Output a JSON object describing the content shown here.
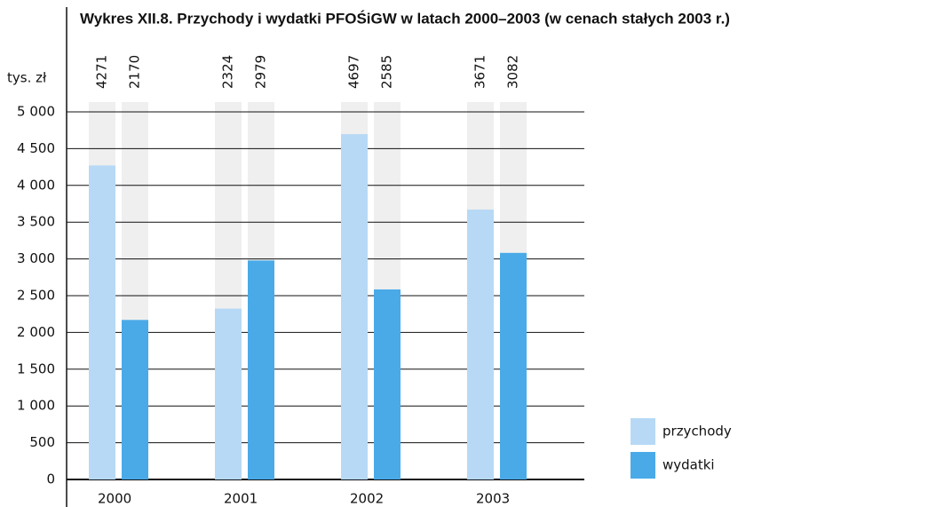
{
  "chart_data": {
    "type": "bar",
    "title": "Wykres XII.8. Przychody i wydatki PFOŚiGW w latach 2000–2003 (w cenach stałych 2003 r.)",
    "y_axis_label": "tys. zł",
    "categories": [
      "2000",
      "2001",
      "2002",
      "2003"
    ],
    "series": [
      {
        "name": "przychody",
        "color": "#b7d9f5",
        "values": [
          4271,
          2324,
          4697,
          3671
        ]
      },
      {
        "name": "wydatki",
        "color": "#4aaae8",
        "values": [
          2170,
          2979,
          2585,
          3082
        ]
      }
    ],
    "ylim": [
      0,
      5000
    ],
    "yticks": [
      0,
      500,
      {
        "value": 1000,
        "label": "1 000"
      },
      {
        "value": 1500,
        "label": "1 500"
      },
      {
        "value": 2000,
        "label": "2 000"
      },
      {
        "value": 2500,
        "label": "2 500"
      },
      {
        "value": 3000,
        "label": "3 000"
      },
      {
        "value": 3500,
        "label": "3 500"
      },
      {
        "value": 4000,
        "label": "4 000"
      },
      {
        "value": 4500,
        "label": "4 500"
      },
      {
        "value": 5000,
        "label": "5 000"
      }
    ],
    "grid": true
  }
}
